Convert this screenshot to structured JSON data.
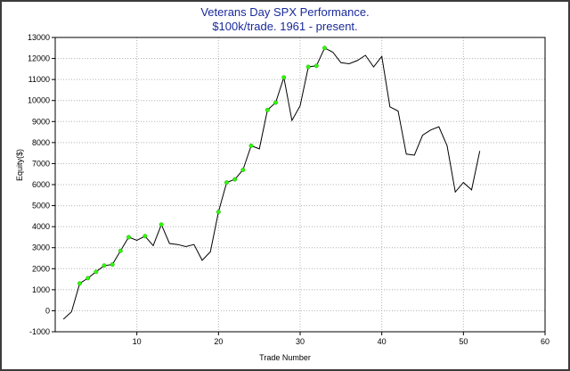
{
  "chart_data": {
    "type": "line",
    "title": "Veterans Day SPX Performance.",
    "subtitle": "$100k/trade. 1961 - present.",
    "xlabel": "Trade Number",
    "ylabel": "Equity($)",
    "xlim": [
      0,
      60
    ],
    "ylim": [
      -1000,
      13000
    ],
    "xticks": [
      10,
      20,
      30,
      40,
      50,
      60
    ],
    "yticks": [
      -1000,
      0,
      1000,
      2000,
      3000,
      4000,
      5000,
      6000,
      7000,
      8000,
      9000,
      10000,
      11000,
      12000,
      13000
    ],
    "grid": true,
    "colors": {
      "line": "#000000",
      "marker": "#2bff00",
      "title": "#1a2a9a",
      "grid": "#b0b0b0"
    },
    "series": [
      {
        "name": "Equity",
        "x": [
          1,
          2,
          3,
          4,
          5,
          6,
          7,
          8,
          9,
          10,
          11,
          12,
          13,
          14,
          15,
          16,
          17,
          18,
          19,
          20,
          21,
          22,
          23,
          24,
          25,
          26,
          27,
          28,
          29,
          30,
          31,
          32,
          33,
          34,
          35,
          36,
          37,
          38,
          39,
          40,
          41,
          42,
          43,
          44,
          45,
          46,
          47,
          48,
          49,
          50,
          51,
          52
        ],
        "values": [
          -400,
          -50,
          1300,
          1550,
          1850,
          2150,
          2200,
          2850,
          3500,
          3350,
          3550,
          3100,
          4100,
          3200,
          3150,
          3050,
          3150,
          2400,
          2800,
          4700,
          6100,
          6250,
          6700,
          7850,
          7700,
          9550,
          9900,
          11100,
          9050,
          9750,
          11600,
          11650,
          12500,
          12300,
          11800,
          11750,
          11900,
          12150,
          11600,
          12100,
          9700,
          9500,
          7450,
          7400,
          8350,
          8600,
          8750,
          7850,
          5650,
          6100,
          5750,
          7600
        ],
        "markers": [
          false,
          false,
          true,
          true,
          true,
          true,
          true,
          true,
          true,
          false,
          true,
          false,
          true,
          false,
          false,
          false,
          false,
          false,
          false,
          true,
          true,
          true,
          true,
          true,
          false,
          true,
          true,
          true,
          false,
          false,
          true,
          true,
          true,
          false,
          false,
          false,
          false,
          false,
          false,
          false,
          false,
          false,
          false,
          false,
          false,
          false,
          false,
          false,
          false,
          false,
          false,
          false
        ]
      }
    ]
  }
}
